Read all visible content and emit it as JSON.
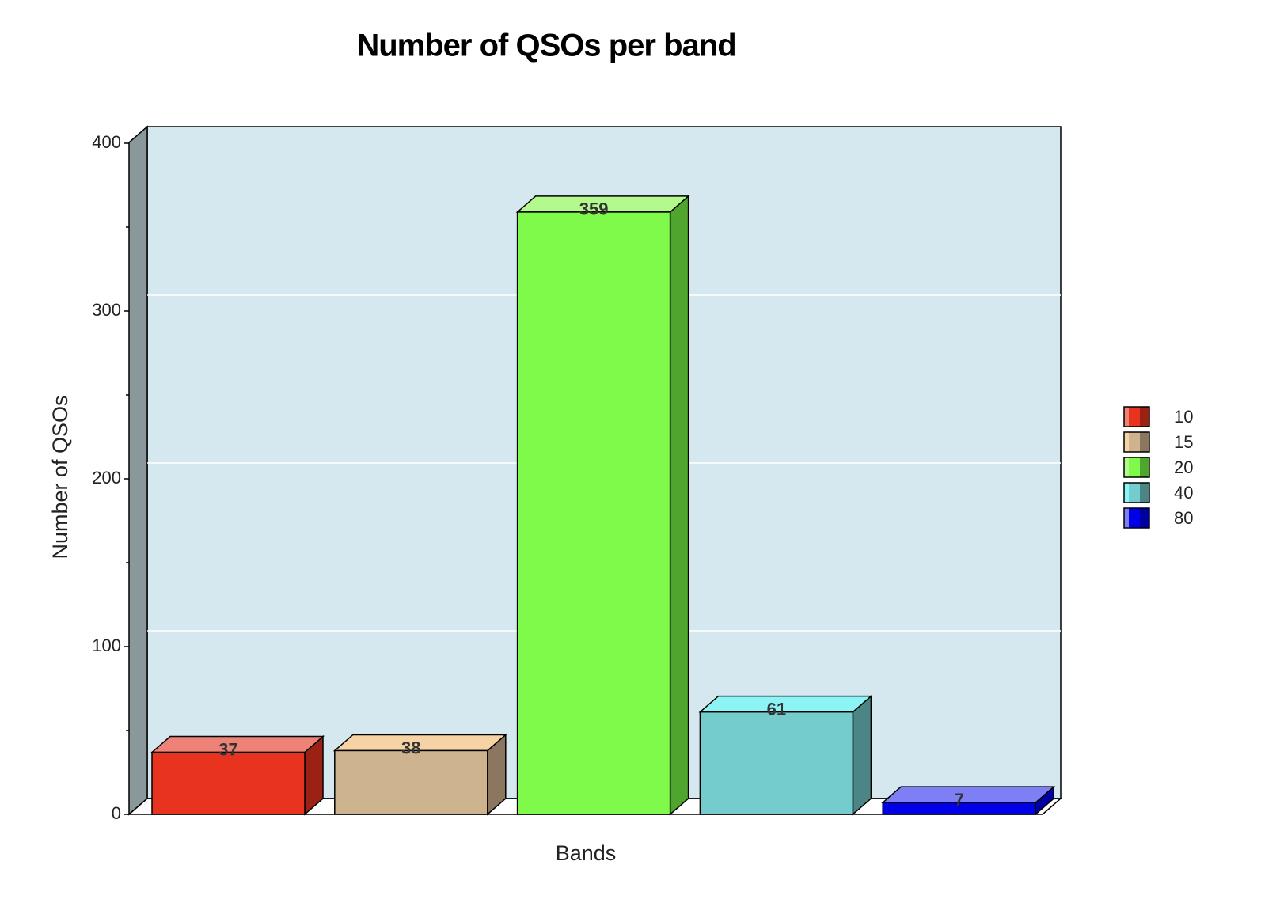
{
  "chart_data": {
    "type": "bar3d",
    "title": "Number of QSOs per band",
    "x_label": "Bands",
    "y_label": "Number of QSOs",
    "categories": [
      "10",
      "15",
      "20",
      "40",
      "80"
    ],
    "values": [
      37,
      38,
      359,
      61,
      7
    ],
    "colors": [
      "#e8341f",
      "#ceb38f",
      "#7ff94a",
      "#74cdcc",
      "#0000e8"
    ],
    "top_colors": [
      "#ee8277",
      "#f5d3a5",
      "#b3f98d",
      "#8cf4f4",
      "#7f7ff5"
    ],
    "side_colors": [
      "#9a2114",
      "#8b7760",
      "#4fa52d",
      "#4c8585",
      "#0000a0"
    ],
    "ylim": [
      0,
      400
    ],
    "yticks": [
      0,
      100,
      200,
      300,
      400
    ],
    "minor_yticks": [
      50,
      150,
      250,
      350
    ],
    "grid": true,
    "legend": "right"
  }
}
